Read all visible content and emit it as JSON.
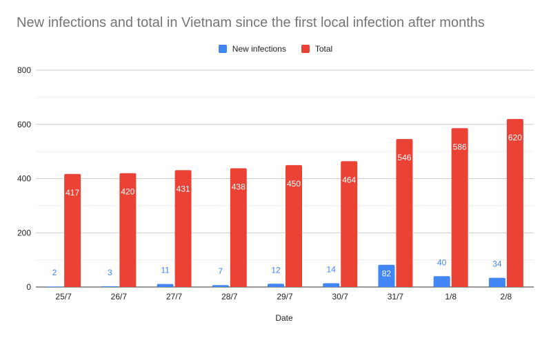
{
  "chart_data": {
    "type": "bar",
    "title": "New infections and total in Vietnam since the first local infection after months",
    "xlabel": "Date",
    "ylabel": "",
    "categories": [
      "25/7",
      "26/7",
      "27/7",
      "28/7",
      "29/7",
      "30/7",
      "31/7",
      "1/8",
      "2/8"
    ],
    "series": [
      {
        "name": "New infections",
        "color": "#4285f4",
        "values": [
          2,
          3,
          11,
          7,
          12,
          14,
          82,
          40,
          34
        ]
      },
      {
        "name": "Total",
        "color": "#ea4335",
        "values": [
          417,
          420,
          431,
          438,
          450,
          464,
          546,
          586,
          620
        ]
      }
    ],
    "ylim": [
      0,
      800
    ],
    "yticks": [
      0,
      200,
      400,
      600,
      800
    ],
    "grid": true,
    "legend_position": "top-center"
  }
}
